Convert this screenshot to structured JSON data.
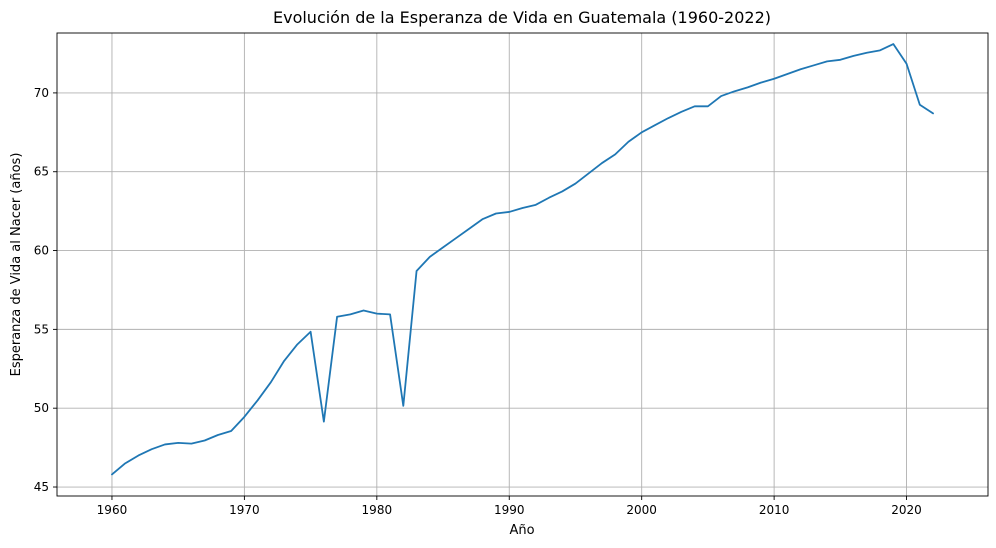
{
  "chart_data": {
    "type": "line",
    "title": "Evolución de la Esperanza de Vida en Guatemala (1960-2022)",
    "xlabel": "Año",
    "ylabel": "Esperanza de Vida al Nacer (años)",
    "xlim": [
      1955.85,
      2026.15
    ],
    "ylim": [
      44.43,
      73.8
    ],
    "x_ticks": [
      1960,
      1970,
      1980,
      1990,
      2000,
      2010,
      2020
    ],
    "y_ticks": [
      45,
      50,
      55,
      60,
      65,
      70
    ],
    "grid": true,
    "line_color": "#1f77b4",
    "series": [
      {
        "x": [
          1960,
          1961,
          1962,
          1963,
          1964,
          1965,
          1966,
          1967,
          1968,
          1969,
          1970,
          1971,
          1972,
          1973,
          1974,
          1975,
          1976,
          1977,
          1978,
          1979,
          1980,
          1981,
          1982,
          1983,
          1984,
          1985,
          1986,
          1987,
          1988,
          1989,
          1990,
          1991,
          1992,
          1993,
          1994,
          1995,
          1996,
          1997,
          1998,
          1999,
          2000,
          2001,
          2002,
          2003,
          2004,
          2005,
          2006,
          2007,
          2008,
          2009,
          2010,
          2011,
          2012,
          2013,
          2014,
          2015,
          2016,
          2017,
          2018,
          2019,
          2020,
          2021,
          2022
        ],
        "values": [
          45.8,
          46.5,
          47.0,
          47.4,
          47.7,
          47.8,
          47.75,
          47.95,
          48.3,
          48.55,
          49.45,
          50.5,
          51.65,
          53.0,
          54.05,
          54.85,
          49.15,
          55.8,
          55.95,
          56.2,
          56.0,
          55.95,
          50.15,
          58.7,
          59.6,
          60.2,
          60.8,
          61.4,
          62.0,
          62.35,
          62.45,
          62.7,
          62.9,
          63.35,
          63.75,
          64.25,
          64.9,
          65.55,
          66.1,
          66.9,
          67.5,
          67.95,
          68.4,
          68.8,
          69.15,
          69.15,
          69.8,
          70.1,
          70.35,
          70.65,
          70.9,
          71.2,
          71.5,
          71.75,
          72.0,
          72.1,
          72.35,
          72.55,
          72.7,
          73.1,
          71.85,
          69.25,
          68.7
        ]
      }
    ]
  }
}
